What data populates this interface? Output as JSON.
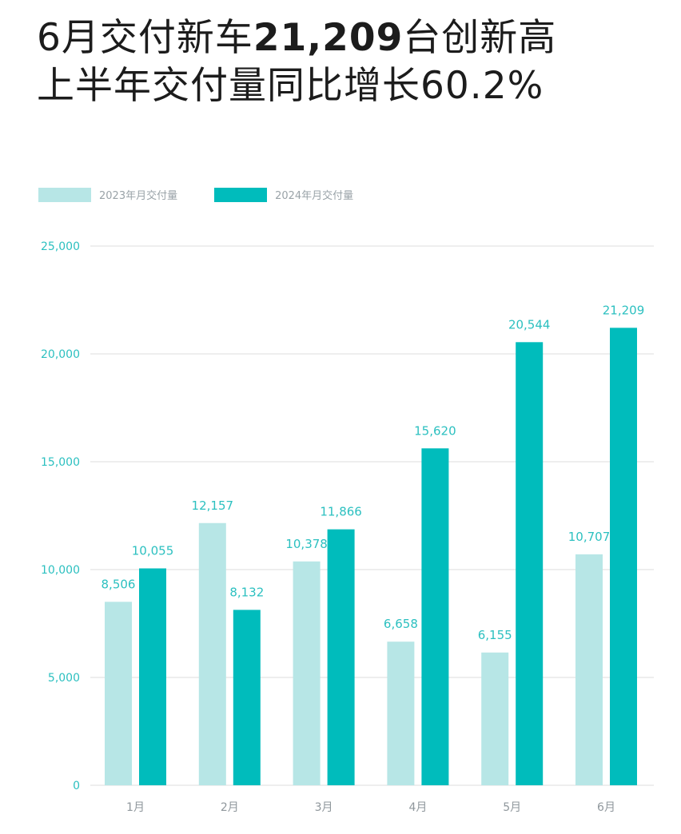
{
  "headline": {
    "line1_prefix": "6月交付新车",
    "line1_number": "21,209",
    "line1_suffix": "台创新高",
    "line2": "上半年交付量同比增长60.2%"
  },
  "legend": {
    "series_2023": "2023年月交付量",
    "series_2024": "2024年月交付量"
  },
  "colors": {
    "series_2023": "#b7e6e6",
    "series_2024": "#00bcbc",
    "axis_labels": "#2cc0c0",
    "data_labels": "#2cc0c0",
    "category_labels": "#8f979c",
    "grid": "#dddddd",
    "text": "#1c1c1c"
  },
  "chart_data": {
    "type": "bar",
    "categories": [
      "1月",
      "2月",
      "3月",
      "4月",
      "5月",
      "6月"
    ],
    "series": [
      {
        "name": "2023年月交付量",
        "values": [
          8506,
          12157,
          10378,
          6658,
          6155,
          10707
        ],
        "labels": [
          "8,506",
          "12,157",
          "10,378",
          "6,658",
          "6,155",
          "10,707"
        ]
      },
      {
        "name": "2024年月交付量",
        "values": [
          10055,
          8132,
          11866,
          15620,
          20544,
          21209
        ],
        "labels": [
          "10,055",
          "8,132",
          "11,866",
          "15,620",
          "20,544",
          "21,209"
        ]
      }
    ],
    "ylim": [
      0,
      25000
    ],
    "yticks": [
      0,
      5000,
      10000,
      15000,
      20000,
      25000
    ],
    "ytick_labels": [
      "0",
      "5,000",
      "10,000",
      "15,000",
      "20,000",
      "25,000"
    ],
    "grid": true,
    "legend_position": "top-left"
  }
}
